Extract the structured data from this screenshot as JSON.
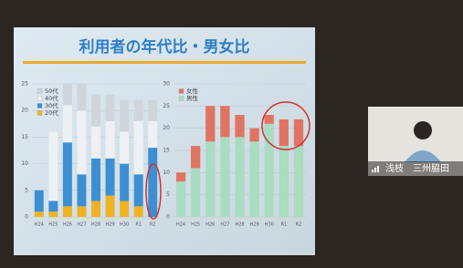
{
  "slide_title": "利用者の年代比・男女比",
  "participant": {
    "name": "浅枝　三州脇田"
  },
  "chart_data": [
    {
      "type": "bar",
      "stacked": true,
      "categories": [
        "H24",
        "H25",
        "H26",
        "H27",
        "H28",
        "H29",
        "H30",
        "R1",
        "R2"
      ],
      "series": [
        {
          "name": "50代",
          "color": "#cfd6db",
          "values": [
            0,
            0,
            4,
            5,
            6,
            5,
            6,
            4,
            4
          ]
        },
        {
          "name": "40代",
          "color": "#eef1f3",
          "values": [
            0,
            13,
            7,
            12,
            6,
            7,
            6,
            10,
            5
          ]
        },
        {
          "name": "30代",
          "color": "#3d8fd1",
          "values": [
            4,
            2,
            12,
            6,
            8,
            7,
            7,
            6,
            13
          ]
        },
        {
          "name": "20代",
          "color": "#f0b122",
          "values": [
            1,
            1,
            2,
            2,
            3,
            4,
            3,
            2,
            0
          ]
        }
      ],
      "ylim": [
        0,
        25
      ],
      "yticks": [
        0,
        5,
        10,
        15,
        20,
        25
      ],
      "grid": true
    },
    {
      "type": "bar",
      "stacked": true,
      "categories": [
        "H24",
        "H25",
        "H26",
        "H27",
        "H28",
        "H29",
        "H30",
        "R1",
        "R2"
      ],
      "series": [
        {
          "name": "女性",
          "color": "#e07462",
          "values": [
            2,
            5,
            8,
            7,
            5,
            3,
            2,
            6,
            6
          ]
        },
        {
          "name": "男性",
          "color": "#a9dcc1",
          "values": [
            8,
            11,
            17,
            18,
            18,
            17,
            21,
            16,
            16
          ]
        }
      ],
      "ylim": [
        0,
        30
      ],
      "yticks": [
        0,
        5,
        10,
        15,
        20,
        25,
        30
      ],
      "grid": true
    }
  ]
}
